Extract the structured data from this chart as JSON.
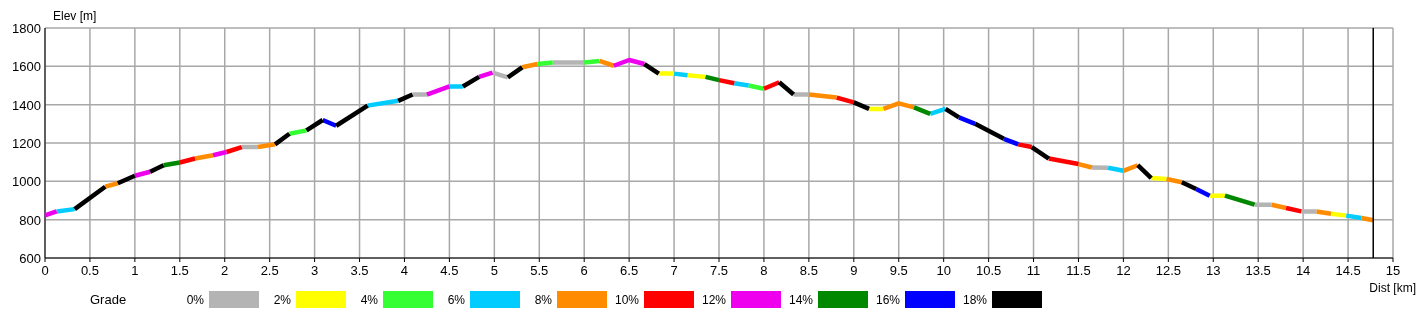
{
  "chart_data": {
    "type": "line",
    "xlabel": "Dist [km]",
    "ylabel": "Elev [m]",
    "legend_title": "Grade",
    "legend": "bottom",
    "grid": true,
    "xlim": [
      0,
      15
    ],
    "xticks": [
      0,
      0.5,
      1,
      1.5,
      2,
      2.5,
      3,
      3.5,
      4,
      4.5,
      5,
      5.5,
      6,
      6.5,
      7,
      7.5,
      8,
      8.5,
      9,
      9.5,
      10,
      10.5,
      11,
      11.5,
      12,
      12.5,
      13,
      13.5,
      14,
      14.5,
      15
    ],
    "ylim": [
      600,
      1800
    ],
    "yticks": [
      600,
      800,
      1000,
      1200,
      1400,
      1600,
      1800
    ],
    "ref_lines": [
      {
        "axis": "x",
        "value": 14.78,
        "color": "#000000"
      }
    ],
    "series": [
      {
        "name": "0%",
        "color": "#b4b4b4",
        "x": [
          2.19,
          2.37,
          null,
          4.09,
          4.25,
          null,
          4.98,
          5.15,
          null,
          5.65,
          6.0,
          null,
          8.33,
          8.5,
          null,
          11.65,
          11.83,
          null,
          13.46,
          13.65,
          null,
          13.98,
          14.15
        ],
        "values": [
          1179,
          1179,
          null,
          1453,
          1453,
          null,
          1567,
          1542,
          null,
          1620,
          1620,
          null,
          1453,
          1453,
          null,
          1072,
          1071,
          null,
          878,
          878,
          null,
          843,
          843
        ]
      },
      {
        "name": "2%",
        "color": "#ffff00",
        "x": [
          6.83,
          7.0,
          null,
          7.15,
          7.35,
          null,
          9.17,
          9.33,
          null,
          12.31,
          12.48,
          null,
          12.96,
          13.13,
          null,
          14.31,
          14.48
        ],
        "values": [
          1562,
          1562,
          null,
          1553,
          1545,
          null,
          1378,
          1378,
          null,
          1017,
          1012,
          null,
          925,
          925,
          null,
          831,
          821
        ]
      },
      {
        "name": "4%",
        "color": "#33ff33",
        "x": [
          2.72,
          2.91,
          null,
          5.48,
          5.65,
          null,
          6.0,
          6.17,
          null,
          7.83,
          8.0
        ],
        "values": [
          1248,
          1266,
          null,
          1612,
          1620,
          null,
          1620,
          1628,
          null,
          1500,
          1483
        ]
      },
      {
        "name": "6%",
        "color": "#00ccff",
        "x": [
          0.13,
          0.33,
          null,
          3.59,
          3.93,
          null,
          4.5,
          4.65,
          null,
          7.0,
          7.15,
          null,
          7.67,
          7.83,
          null,
          9.85,
          10.02,
          null,
          11.83,
          12.0,
          null,
          14.48,
          14.65
        ],
        "values": [
          843,
          855,
          null,
          1395,
          1420,
          null,
          1495,
          1495,
          null,
          1562,
          1553,
          null,
          1512,
          1500,
          null,
          1352,
          1378,
          null,
          1071,
          1055,
          null,
          821,
          809
        ]
      },
      {
        "name": "8%",
        "color": "#ff8c00",
        "x": [
          0.67,
          0.81,
          null,
          1.67,
          1.87,
          null,
          2.37,
          2.56,
          null,
          5.31,
          5.48,
          null,
          6.17,
          6.33,
          null,
          8.5,
          8.81,
          null,
          9.33,
          9.5,
          9.67,
          null,
          11.5,
          11.65,
          null,
          12.0,
          12.16,
          null,
          12.48,
          12.65,
          null,
          13.65,
          13.81,
          null,
          14.15,
          14.31,
          null,
          14.65,
          14.78
        ],
        "values": [
          972,
          990,
          null,
          1119,
          1136,
          null,
          1179,
          1193,
          null,
          1595,
          1612,
          null,
          1628,
          1603,
          null,
          1453,
          1437,
          null,
          1378,
          1407,
          1386,
          null,
          1090,
          1072,
          null,
          1055,
          1084,
          null,
          1012,
          995,
          null,
          878,
          861,
          null,
          843,
          831,
          null,
          809,
          797
        ]
      },
      {
        "name": "10%",
        "color": "#ff0000",
        "x": [
          1.5,
          1.67,
          null,
          2.02,
          2.19,
          null,
          7.5,
          7.67,
          null,
          8.0,
          8.17,
          null,
          8.81,
          9.0,
          null,
          10.83,
          10.98,
          null,
          11.17,
          11.5,
          null,
          13.81,
          13.98
        ],
        "values": [
          1098,
          1119,
          null,
          1153,
          1179,
          null,
          1528,
          1512,
          null,
          1483,
          1517,
          null,
          1437,
          1412,
          null,
          1193,
          1179,
          null,
          1119,
          1090,
          null,
          861,
          843
        ]
      },
      {
        "name": "12%",
        "color": "#ee00ee",
        "x": [
          0,
          0.13,
          null,
          1.0,
          1.17,
          null,
          1.87,
          2.02,
          null,
          4.25,
          4.5,
          null,
          4.83,
          4.98,
          null,
          6.33,
          6.5,
          6.67
        ],
        "values": [
          822,
          843,
          null,
          1029,
          1050,
          null,
          1136,
          1153,
          null,
          1453,
          1495,
          null,
          1545,
          1567,
          null,
          1603,
          1633,
          1612
        ]
      },
      {
        "name": "14%",
        "color": "#008800",
        "x": [
          1.32,
          1.5,
          null,
          7.35,
          7.5,
          null,
          9.67,
          9.85,
          null,
          13.13,
          13.46
        ],
        "values": [
          1084,
          1098,
          null,
          1545,
          1528,
          null,
          1386,
          1352,
          null,
          925,
          878
        ]
      },
      {
        "name": "16%",
        "color": "#0000ff",
        "x": [
          3.09,
          3.24,
          null,
          10.17,
          10.35,
          null,
          10.67,
          10.83,
          null,
          12.81,
          12.96
        ],
        "values": [
          1320,
          1290,
          null,
          1334,
          1300,
          null,
          1222,
          1193,
          null,
          960,
          925
        ]
      },
      {
        "name": "18%",
        "color": "#000000",
        "x": [
          0.33,
          0.67,
          null,
          0.81,
          1.0,
          null,
          1.17,
          1.32,
          null,
          2.56,
          2.72,
          null,
          2.91,
          3.09,
          null,
          3.24,
          3.59,
          null,
          3.93,
          4.09,
          null,
          4.65,
          4.83,
          null,
          5.15,
          5.31,
          null,
          6.67,
          6.83,
          null,
          8.17,
          8.33,
          null,
          9.0,
          9.17,
          null,
          10.02,
          10.17,
          null,
          10.35,
          10.67,
          null,
          10.98,
          11.17,
          null,
          12.16,
          12.31,
          null,
          12.65,
          12.81
        ],
        "values": [
          855,
          972,
          null,
          990,
          1029,
          null,
          1050,
          1084,
          null,
          1193,
          1248,
          null,
          1266,
          1320,
          null,
          1290,
          1395,
          null,
          1420,
          1453,
          null,
          1495,
          1545,
          null,
          1542,
          1595,
          null,
          1612,
          1562,
          null,
          1517,
          1453,
          null,
          1412,
          1378,
          null,
          1378,
          1334,
          null,
          1300,
          1222,
          null,
          1179,
          1119,
          null,
          1084,
          1017,
          null,
          995,
          960
        ]
      }
    ]
  }
}
